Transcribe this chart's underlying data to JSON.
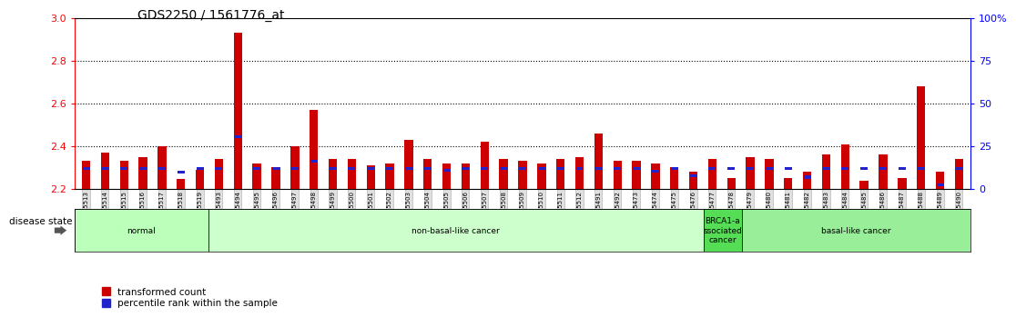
{
  "title": "GDS2250 / 1561776_at",
  "ylim": [
    2.2,
    3.0
  ],
  "yticks": [
    2.2,
    2.4,
    2.6,
    2.8,
    3.0
  ],
  "right_ytick_pcts": [
    0,
    25,
    50,
    75,
    100
  ],
  "right_ylabels": [
    "0",
    "25",
    "50",
    "75",
    "100%"
  ],
  "bar_color": "#cc0000",
  "blue_color": "#2222cc",
  "legend_red": "transformed count",
  "legend_blue": "percentile rank within the sample",
  "disease_state_label": "disease state",
  "groups": [
    {
      "label": "normal",
      "color": "#bbffbb",
      "start": 0,
      "end": 7
    },
    {
      "label": "non-basal-like cancer",
      "color": "#ccffcc",
      "start": 7,
      "end": 33
    },
    {
      "label": "BRCA1-a\nssociated\ncancer",
      "color": "#55dd55",
      "start": 33,
      "end": 35
    },
    {
      "label": "basal-like cancer",
      "color": "#99ee99",
      "start": 35,
      "end": 47
    }
  ],
  "samples": [
    {
      "name": "GSM85513",
      "red": 2.33,
      "blue": 2.295
    },
    {
      "name": "GSM85514",
      "red": 2.37,
      "blue": 2.295
    },
    {
      "name": "GSM85515",
      "red": 2.33,
      "blue": 2.295
    },
    {
      "name": "GSM85516",
      "red": 2.35,
      "blue": 2.295
    },
    {
      "name": "GSM85517",
      "red": 2.4,
      "blue": 2.295
    },
    {
      "name": "GSM85518",
      "red": 2.245,
      "blue": 2.278
    },
    {
      "name": "GSM85519",
      "red": 2.29,
      "blue": 2.295
    },
    {
      "name": "GSM85493",
      "red": 2.34,
      "blue": 2.295
    },
    {
      "name": "GSM85494",
      "red": 2.93,
      "blue": 2.445
    },
    {
      "name": "GSM85495",
      "red": 2.32,
      "blue": 2.295
    },
    {
      "name": "GSM85496",
      "red": 2.3,
      "blue": 2.295
    },
    {
      "name": "GSM85497",
      "red": 2.4,
      "blue": 2.295
    },
    {
      "name": "GSM85498",
      "red": 2.57,
      "blue": 2.33
    },
    {
      "name": "GSM85499",
      "red": 2.34,
      "blue": 2.295
    },
    {
      "name": "GSM85500",
      "red": 2.34,
      "blue": 2.295
    },
    {
      "name": "GSM85501",
      "red": 2.31,
      "blue": 2.295
    },
    {
      "name": "GSM85502",
      "red": 2.32,
      "blue": 2.295
    },
    {
      "name": "GSM85503",
      "red": 2.43,
      "blue": 2.295
    },
    {
      "name": "GSM85504",
      "red": 2.34,
      "blue": 2.295
    },
    {
      "name": "GSM85505",
      "red": 2.32,
      "blue": 2.285
    },
    {
      "name": "GSM85506",
      "red": 2.32,
      "blue": 2.295
    },
    {
      "name": "GSM85507",
      "red": 2.42,
      "blue": 2.295
    },
    {
      "name": "GSM85508",
      "red": 2.34,
      "blue": 2.295
    },
    {
      "name": "GSM85509",
      "red": 2.33,
      "blue": 2.295
    },
    {
      "name": "GSM85510",
      "red": 2.32,
      "blue": 2.295
    },
    {
      "name": "GSM85511",
      "red": 2.34,
      "blue": 2.295
    },
    {
      "name": "GSM85512",
      "red": 2.35,
      "blue": 2.295
    },
    {
      "name": "GSM85491",
      "red": 2.46,
      "blue": 2.295
    },
    {
      "name": "GSM85492",
      "red": 2.33,
      "blue": 2.295
    },
    {
      "name": "GSM85473",
      "red": 2.33,
      "blue": 2.295
    },
    {
      "name": "GSM85474",
      "red": 2.32,
      "blue": 2.283
    },
    {
      "name": "GSM85475",
      "red": 2.3,
      "blue": 2.295
    },
    {
      "name": "GSM85476",
      "red": 2.28,
      "blue": 2.263
    },
    {
      "name": "GSM85477",
      "red": 2.34,
      "blue": 2.295
    },
    {
      "name": "GSM85478",
      "red": 2.25,
      "blue": 2.295
    },
    {
      "name": "GSM85479",
      "red": 2.35,
      "blue": 2.295
    },
    {
      "name": "GSM85480",
      "red": 2.34,
      "blue": 2.295
    },
    {
      "name": "GSM85481",
      "red": 2.25,
      "blue": 2.295
    },
    {
      "name": "GSM85482",
      "red": 2.28,
      "blue": 2.255
    },
    {
      "name": "GSM85483",
      "red": 2.36,
      "blue": 2.295
    },
    {
      "name": "GSM85484",
      "red": 2.41,
      "blue": 2.295
    },
    {
      "name": "GSM85485",
      "red": 2.24,
      "blue": 2.295
    },
    {
      "name": "GSM85486",
      "red": 2.36,
      "blue": 2.295
    },
    {
      "name": "GSM85487",
      "red": 2.25,
      "blue": 2.295
    },
    {
      "name": "GSM85488",
      "red": 2.68,
      "blue": 2.295
    },
    {
      "name": "GSM85489",
      "red": 2.28,
      "blue": 2.22
    },
    {
      "name": "GSM85490",
      "red": 2.34,
      "blue": 2.295
    }
  ]
}
